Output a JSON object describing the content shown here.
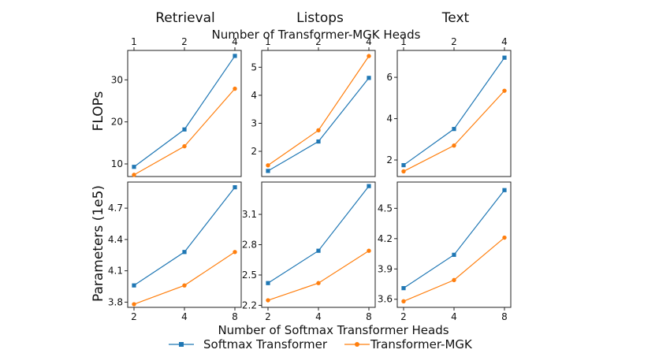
{
  "colors": {
    "softmax": "#1f77b4",
    "mgk": "#ff7f0e",
    "frame": "#222222"
  },
  "figure": {
    "col_titles": [
      "Retrieval",
      "Listops",
      "Text"
    ],
    "top_xlabel": "Number of Transformer-MGK Heads",
    "bottom_xlabel": "Number of Softmax Transformer Heads",
    "row_labels": [
      "FLOPs",
      "Parameters (1e5)"
    ],
    "legend": [
      "Softmax Transformer",
      "Transformer-MGK"
    ]
  },
  "chart_data": [
    {
      "type": "line",
      "task": "Retrieval",
      "metric": "FLOPs",
      "xaxis": "top",
      "x_ticks": [
        "1",
        "2",
        "4"
      ],
      "ylim": [
        7,
        37
      ],
      "yticks": [
        10,
        20,
        30
      ],
      "series": [
        {
          "name": "Softmax Transformer",
          "marker": "square",
          "values": [
            9.3,
            18.2,
            35.7
          ]
        },
        {
          "name": "Transformer-MGK",
          "marker": "circle",
          "values": [
            7.4,
            14.2,
            27.9
          ]
        }
      ]
    },
    {
      "type": "line",
      "task": "Listops",
      "metric": "FLOPs",
      "xaxis": "top",
      "x_ticks": [
        "1",
        "2",
        "4"
      ],
      "ylim": [
        1.1,
        5.6
      ],
      "yticks": [
        2,
        3,
        4,
        5
      ],
      "series": [
        {
          "name": "Softmax Transformer",
          "marker": "square",
          "values": [
            1.3,
            2.35,
            4.62
          ]
        },
        {
          "name": "Transformer-MGK",
          "marker": "circle",
          "values": [
            1.5,
            2.75,
            5.4
          ]
        }
      ]
    },
    {
      "type": "line",
      "task": "Text",
      "metric": "FLOPs",
      "xaxis": "top",
      "x_ticks": [
        "1",
        "2",
        "4"
      ],
      "ylim": [
        1.2,
        7.3
      ],
      "yticks": [
        2,
        4,
        6
      ],
      "series": [
        {
          "name": "Softmax Transformer",
          "marker": "square",
          "values": [
            1.75,
            3.5,
            6.95
          ]
        },
        {
          "name": "Transformer-MGK",
          "marker": "circle",
          "values": [
            1.45,
            2.7,
            5.35
          ]
        }
      ]
    },
    {
      "type": "line",
      "task": "Retrieval",
      "metric": "Parameters (1e5)",
      "xaxis": "bottom",
      "x_ticks": [
        "2",
        "4",
        "8"
      ],
      "ylim": [
        3.75,
        4.95
      ],
      "yticks": [
        3.8,
        4.1,
        4.4,
        4.7
      ],
      "series": [
        {
          "name": "Softmax Transformer",
          "marker": "square",
          "values": [
            3.96,
            4.28,
            4.9
          ]
        },
        {
          "name": "Transformer-MGK",
          "marker": "circle",
          "values": [
            3.78,
            3.96,
            4.28
          ]
        }
      ]
    },
    {
      "type": "line",
      "task": "Listops",
      "metric": "Parameters (1e5)",
      "xaxis": "bottom",
      "x_ticks": [
        "2",
        "4",
        "8"
      ],
      "ylim": [
        2.18,
        3.42
      ],
      "yticks": [
        2.2,
        2.5,
        2.8,
        3.1
      ],
      "series": [
        {
          "name": "Softmax Transformer",
          "marker": "square",
          "values": [
            2.42,
            2.74,
            3.38
          ]
        },
        {
          "name": "Transformer-MGK",
          "marker": "circle",
          "values": [
            2.25,
            2.42,
            2.74
          ]
        }
      ]
    },
    {
      "type": "line",
      "task": "Text",
      "metric": "Parameters (1e5)",
      "xaxis": "bottom",
      "x_ticks": [
        "2",
        "4",
        "8"
      ],
      "ylim": [
        3.52,
        4.76
      ],
      "yticks": [
        3.6,
        3.9,
        4.2,
        4.5
      ],
      "series": [
        {
          "name": "Softmax Transformer",
          "marker": "square",
          "values": [
            3.71,
            4.04,
            4.68
          ]
        },
        {
          "name": "Transformer-MGK",
          "marker": "circle",
          "values": [
            3.58,
            3.79,
            4.21
          ]
        }
      ]
    }
  ]
}
